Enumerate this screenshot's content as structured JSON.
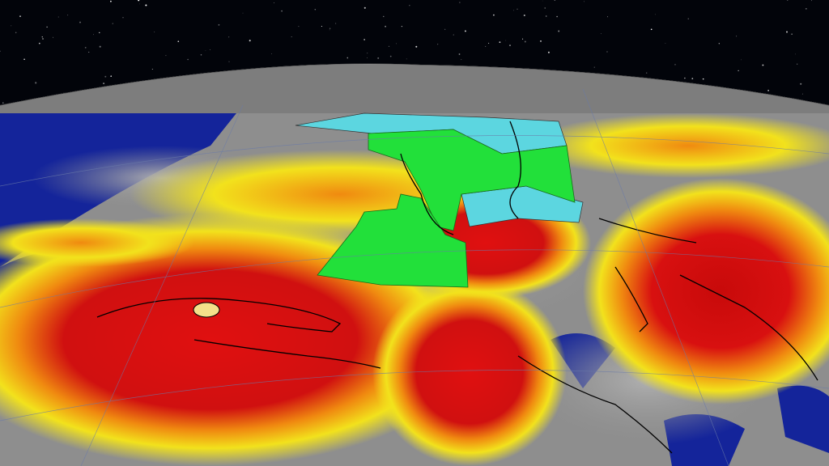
{
  "scene": {
    "colors": {
      "space": "#02040a",
      "ocean": "#14249a",
      "land": "#8a8a8a",
      "cloud_gray": "#a8a8a8",
      "rain_yellow": "#f2e21c",
      "rain_orange": "#f08a10",
      "rain_red": "#d81010",
      "rain_dark_red": "#a00808",
      "warning_green": "#22e03a",
      "watch_cyan": "#5cd6e0",
      "coastline": "#000000"
    },
    "icons": [
      "starfield",
      "globe",
      "hurricane-eye"
    ]
  }
}
